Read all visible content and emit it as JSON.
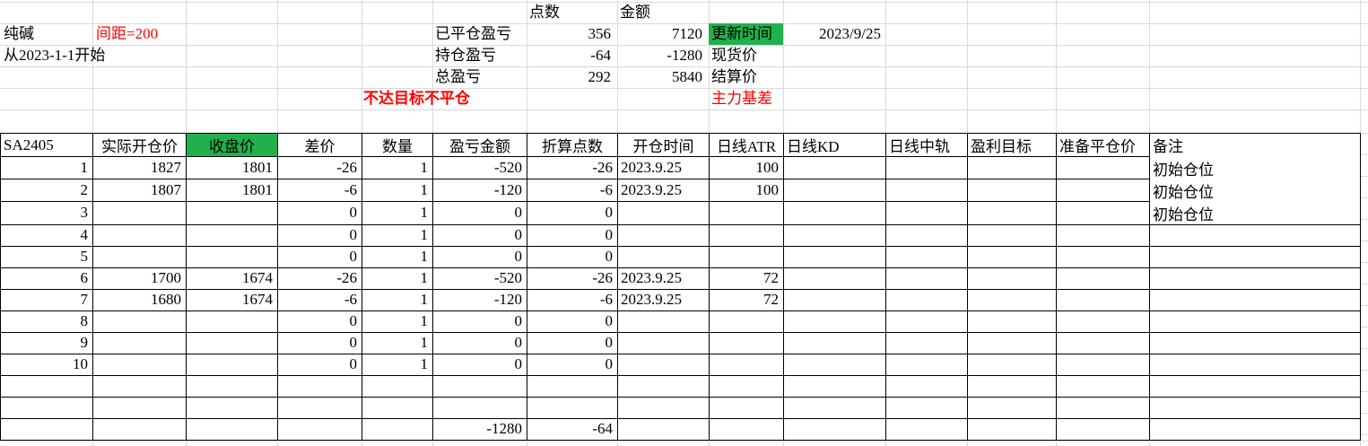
{
  "sheet": {
    "product": "纯碱",
    "spacing_note": "间距=200",
    "start_note": "从2023-1-1开始",
    "warning_note": "不达目标不平仓",
    "summary": {
      "points_header": "点数",
      "amount_header": "金额",
      "closed": {
        "label": "已平仓盈亏",
        "points": "356",
        "amount": "7120"
      },
      "holding": {
        "label": "持仓盈亏",
        "points": "-64",
        "amount": "-1280"
      },
      "total": {
        "label": "总盈亏",
        "points": "292",
        "amount": "5840"
      }
    },
    "update_time": {
      "label": "更新时间",
      "value": "2023/9/25"
    },
    "spot_price_label": "现货价",
    "settlement_price_label": "结算价",
    "main_basis_label": "主力基差",
    "colors": {
      "highlight_green": "#21b14c",
      "alert_red": "#ff0000",
      "grid_gray": "#d9d9d9"
    }
  },
  "table": {
    "headers": [
      "SA2405",
      "实际开仓价",
      "收盘价",
      "差价",
      "数量",
      "盈亏金额",
      "折算点数",
      "开仓时间",
      "日线ATR",
      "日线KD",
      "日线中轨",
      "盈利目标",
      "准备平仓价",
      "备注"
    ],
    "remark_initial": "初始仓位",
    "rows": [
      [
        "1",
        "1827",
        "1801",
        "-26",
        "1",
        "-520",
        "-26",
        "2023.9.25",
        "100",
        "",
        "",
        "",
        "",
        "初始仓位"
      ],
      [
        "2",
        "1807",
        "1801",
        "-6",
        "1",
        "-120",
        "-6",
        "2023.9.25",
        "100",
        "",
        "",
        "",
        "",
        "初始仓位"
      ],
      [
        "3",
        "",
        "",
        "0",
        "1",
        "0",
        "0",
        "",
        "",
        "",
        "",
        "",
        "",
        "初始仓位"
      ],
      [
        "4",
        "",
        "",
        "0",
        "1",
        "0",
        "0",
        "",
        "",
        "",
        "",
        "",
        "",
        ""
      ],
      [
        "5",
        "",
        "",
        "0",
        "1",
        "0",
        "0",
        "",
        "",
        "",
        "",
        "",
        "",
        ""
      ],
      [
        "6",
        "1700",
        "1674",
        "-26",
        "1",
        "-520",
        "-26",
        "2023.9.25",
        "72",
        "",
        "",
        "",
        "",
        ""
      ],
      [
        "7",
        "1680",
        "1674",
        "-6",
        "1",
        "-120",
        "-6",
        "2023.9.25",
        "72",
        "",
        "",
        "",
        "",
        ""
      ],
      [
        "8",
        "",
        "",
        "0",
        "1",
        "0",
        "0",
        "",
        "",
        "",
        "",
        "",
        "",
        ""
      ],
      [
        "9",
        "",
        "",
        "0",
        "1",
        "0",
        "0",
        "",
        "",
        "",
        "",
        "",
        "",
        ""
      ],
      [
        "10",
        "",
        "",
        "0",
        "1",
        "0",
        "0",
        "",
        "",
        "",
        "",
        "",
        "",
        ""
      ],
      [
        "",
        "",
        "",
        "",
        "",
        "",
        "",
        "",
        "",
        "",
        "",
        "",
        "",
        ""
      ],
      [
        "",
        "",
        "",
        "",
        "",
        "",
        "",
        "",
        "",
        "",
        "",
        "",
        "",
        ""
      ],
      [
        "",
        "",
        "",
        "",
        "",
        "-1280",
        "-64",
        "",
        "",
        "",
        "",
        "",
        "",
        ""
      ]
    ]
  }
}
